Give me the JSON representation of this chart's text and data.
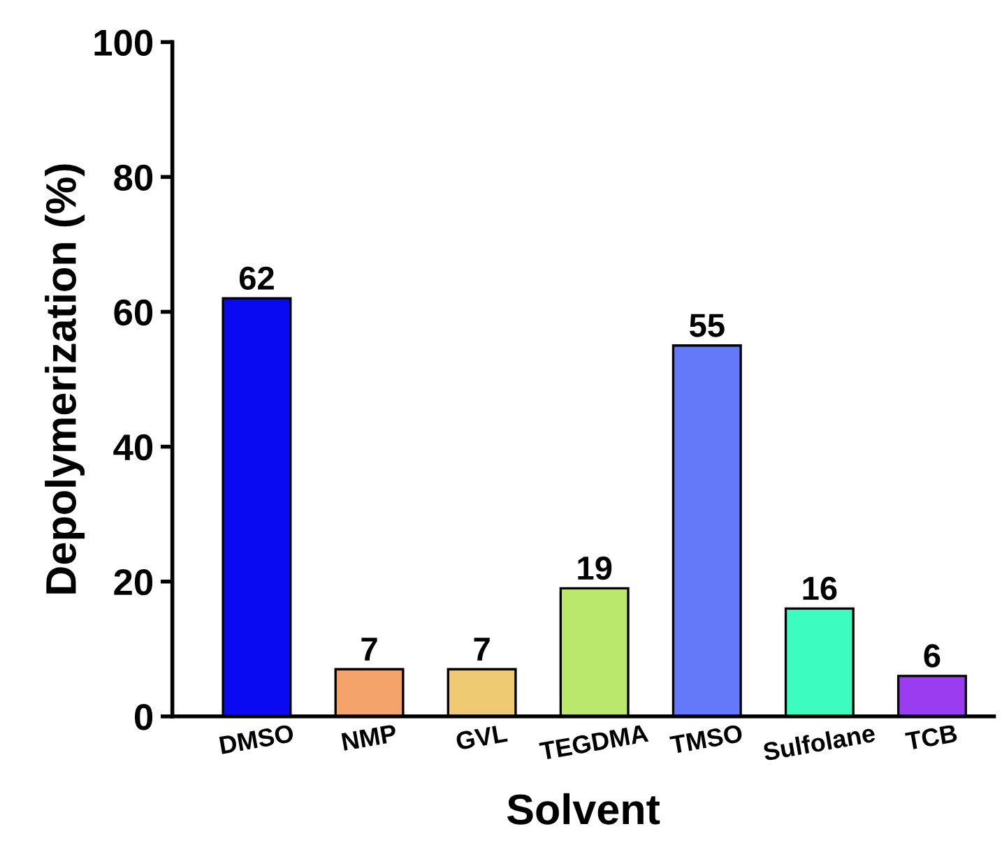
{
  "chart_data": {
    "type": "bar",
    "xlabel": "Solvent",
    "ylabel": "Depolymerization (%)",
    "categories": [
      "DMSO",
      "NMP",
      "GVL",
      "TEGDMA",
      "TMSO",
      "Sulfolane",
      "TCB"
    ],
    "values": [
      62,
      7,
      7,
      19,
      55,
      16,
      6
    ],
    "colors": [
      "#0a0af2",
      "#f4a46a",
      "#eecb72",
      "#b9e86c",
      "#6478fa",
      "#3dfcc0",
      "#9b3cf0"
    ],
    "ylim": [
      0,
      100
    ],
    "yticks": [
      0,
      20,
      40,
      60,
      80,
      100
    ],
    "data_labels": true,
    "grid": false,
    "legend": false
  }
}
